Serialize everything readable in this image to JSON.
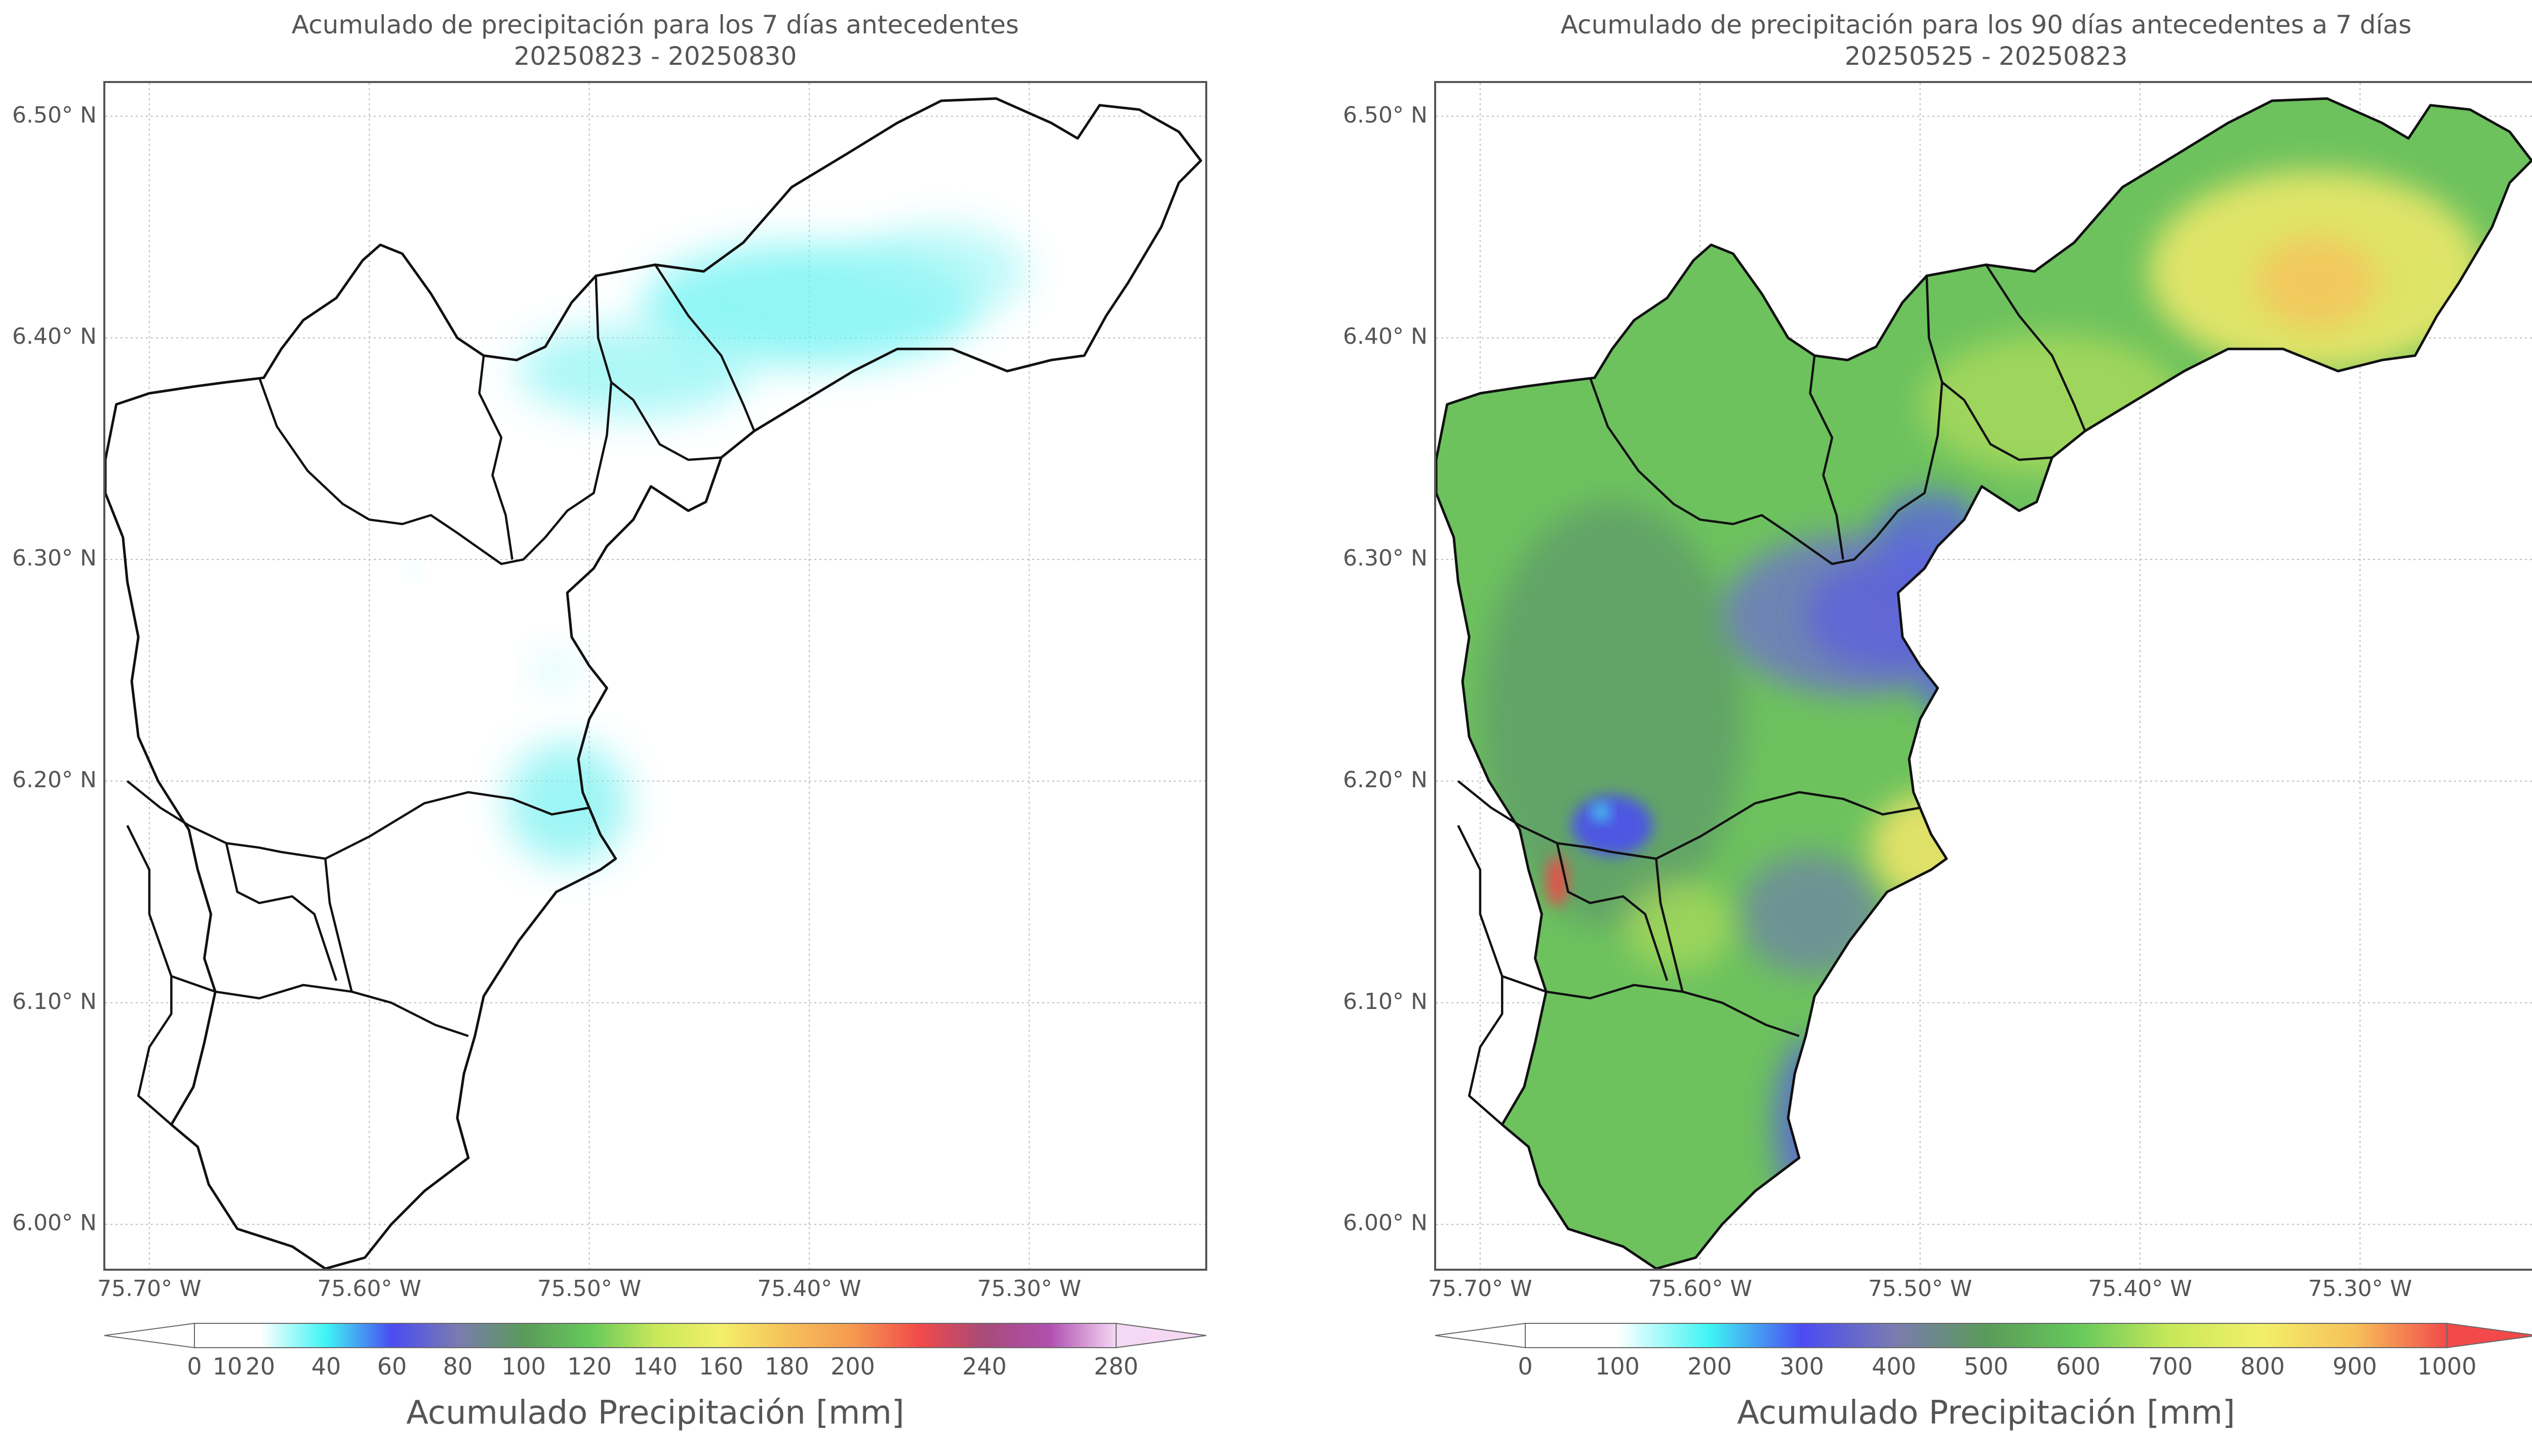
{
  "left_panel": {
    "title_line1": "Acumulado de precipitación para los 7 días antecedentes",
    "title_line2": "20250823 - 20250830",
    "colorbar_label": "Acumulado Precipitación [mm]",
    "colorbar_ticks": [
      "0",
      "10",
      "20",
      "40",
      "60",
      "80",
      "100",
      "120",
      "140",
      "160",
      "180",
      "200",
      "240",
      "280"
    ],
    "colorbar_tick_values": [
      0,
      10,
      20,
      40,
      60,
      80,
      100,
      120,
      140,
      160,
      180,
      200,
      240,
      280
    ],
    "colorbar_range": [
      0,
      280
    ]
  },
  "right_panel": {
    "title_line1": "Acumulado de precipitación para los 90 días antecedentes a 7 días",
    "title_line2": "20250525 - 20250823",
    "colorbar_label": "Acumulado Precipitación [mm]",
    "colorbar_ticks": [
      "0",
      "100",
      "200",
      "300",
      "400",
      "500",
      "600",
      "700",
      "800",
      "900",
      "1000"
    ],
    "colorbar_tick_values": [
      0,
      100,
      200,
      300,
      400,
      500,
      600,
      700,
      800,
      900,
      1000
    ],
    "colorbar_range": [
      0,
      1000
    ]
  },
  "axes": {
    "x_ticks": [
      "75.70° W",
      "75.60° W",
      "75.50° W",
      "75.40° W",
      "75.30° W"
    ],
    "x_values": [
      -75.7,
      -75.6,
      -75.5,
      -75.4,
      -75.3
    ],
    "x_range": [
      -75.72,
      -75.22
    ],
    "y_ticks": [
      "6.50° N",
      "6.40° N",
      "6.30° N",
      "6.20° N",
      "6.10° N",
      "6.00° N"
    ],
    "y_values": [
      6.5,
      6.4,
      6.3,
      6.2,
      6.1,
      6.0
    ],
    "y_range": [
      5.98,
      6.515
    ]
  },
  "colors": {
    "boundary": "#111111",
    "grid": "#bbbbbb",
    "left_cmap": [
      "#ffffff",
      "#ffffff",
      "#3ff4f4",
      "#4a4cf2",
      "#7a7bb0",
      "#5a9a5a",
      "#66c95a",
      "#c8e85a",
      "#f3ef6a",
      "#f6c05a",
      "#f59a50",
      "#f24a4a",
      "#a84a78",
      "#b050b0",
      "#f4d8f4"
    ],
    "right_cmap": [
      "#ffffff",
      "#ffffff",
      "#3ff4f4",
      "#4a4cf2",
      "#7a7bb0",
      "#5a9a5a",
      "#66c95a",
      "#c8e85a",
      "#f3ef6a",
      "#f6c05a",
      "#f24a4a"
    ]
  }
}
